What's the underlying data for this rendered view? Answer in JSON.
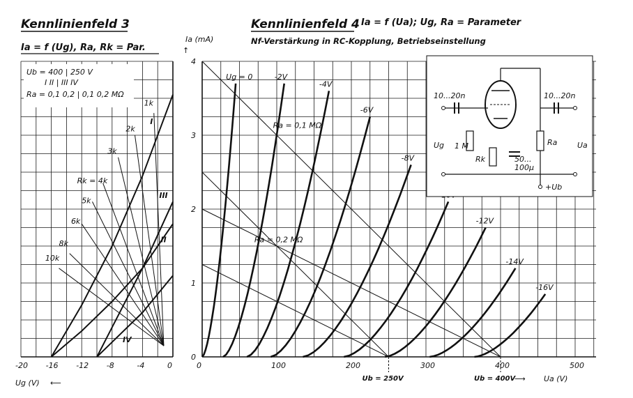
{
  "chart_data": [
    {
      "type": "line",
      "title": "Kennlinienfeld 3",
      "subtitle": "Ia = f (Ug), Ra, Rk = Par.",
      "xlabel": "Ug (V)",
      "ylabel": "Ia (mA)",
      "xlim": [
        -20,
        0
      ],
      "ylim": [
        0,
        4
      ],
      "x_ticks": [
        "-20",
        "-16",
        "-12",
        "-8",
        "-4",
        "0"
      ],
      "param_box": {
        "row1": "Ub = 400 | 250 V",
        "row2": "I  II | III  IV",
        "row3": "Ra = 0,1 0,2 | 0,1 0,2 MΩ"
      },
      "series": [
        {
          "name": "I",
          "x": [
            -16,
            -12,
            -8,
            -4,
            0
          ],
          "y": [
            0,
            0.7,
            1.5,
            2.45,
            3.55
          ]
        },
        {
          "name": "II",
          "x": [
            -16,
            -12,
            -8,
            -4,
            0
          ],
          "y": [
            0,
            0.35,
            0.75,
            1.2,
            1.8
          ]
        },
        {
          "name": "III",
          "x": [
            -10,
            -8,
            -4,
            0
          ],
          "y": [
            0,
            0.4,
            1.2,
            2.1
          ]
        },
        {
          "name": "IV",
          "x": [
            -10,
            -8,
            -4,
            0
          ],
          "y": [
            0,
            0.2,
            0.6,
            1.1
          ]
        }
      ],
      "rk_lines": [
        "1k",
        "2k",
        "3k",
        "Rk = 4k",
        "5k",
        "6k",
        "8k",
        "10k"
      ]
    },
    {
      "type": "line",
      "title": "Kennlinienfeld 4",
      "subtitle": "Ia = f (Ua); Ug, Ra = Parameter",
      "subtitle2": "Nf-Verstärkung in RC-Kopplung, Betriebseinstellung",
      "xlabel": "Ua (V)",
      "ylabel": "Ia (mA)",
      "xlim": [
        0,
        500
      ],
      "ylim": [
        0,
        4
      ],
      "x_ticks": [
        "0",
        "100",
        "200",
        "300",
        "400",
        "500"
      ],
      "y_ticks": [
        "0",
        "1",
        "2",
        "3",
        "4"
      ],
      "ub_marks": [
        "Ub = 250V",
        "Ub = 400V"
      ],
      "series": [
        {
          "name": "Ug = 0",
          "ug": 0,
          "start": 0,
          "end": [
            45,
            3.7
          ]
        },
        {
          "name": "-2V",
          "ug": -2,
          "start": 28,
          "end": [
            110,
            3.7
          ]
        },
        {
          "name": "-4V",
          "ug": -4,
          "start": 60,
          "end": [
            170,
            3.6
          ]
        },
        {
          "name": "-6V",
          "ug": -6,
          "start": 92,
          "end": [
            225,
            3.25
          ]
        },
        {
          "name": "-8V",
          "ug": -8,
          "start": 135,
          "end": [
            280,
            2.6
          ]
        },
        {
          "name": "-10V",
          "ug": -10,
          "start": 190,
          "end": [
            330,
            2.1
          ]
        },
        {
          "name": "-12V",
          "ug": -12,
          "start": 245,
          "end": [
            380,
            1.75
          ]
        },
        {
          "name": "-14V",
          "ug": -14,
          "start": 305,
          "end": [
            420,
            1.2
          ]
        },
        {
          "name": "-16V",
          "ug": -16,
          "start": 365,
          "end": [
            460,
            0.85
          ]
        }
      ],
      "load_lines": [
        {
          "label": "Ra = 0,1 MΩ",
          "from": [
            0,
            4
          ],
          "to": [
            400,
            0
          ]
        },
        {
          "label": "Ra = 0,2 MΩ",
          "from": [
            0,
            2
          ],
          "to": [
            400,
            0
          ]
        },
        {
          "label": "",
          "from": [
            0,
            2.5
          ],
          "to": [
            250,
            0
          ]
        },
        {
          "label": "",
          "from": [
            0,
            1.25
          ],
          "to": [
            250,
            0
          ]
        }
      ],
      "inset_labels": {
        "c_in": "10...20n",
        "c_out": "10...20n",
        "rg": "1 M",
        "rk": "Rk",
        "ck": "50...",
        "ck2": "100µ",
        "ra": "Ra",
        "ug": "Ug",
        "ua": "Ua",
        "ub": "+Ub"
      }
    }
  ]
}
